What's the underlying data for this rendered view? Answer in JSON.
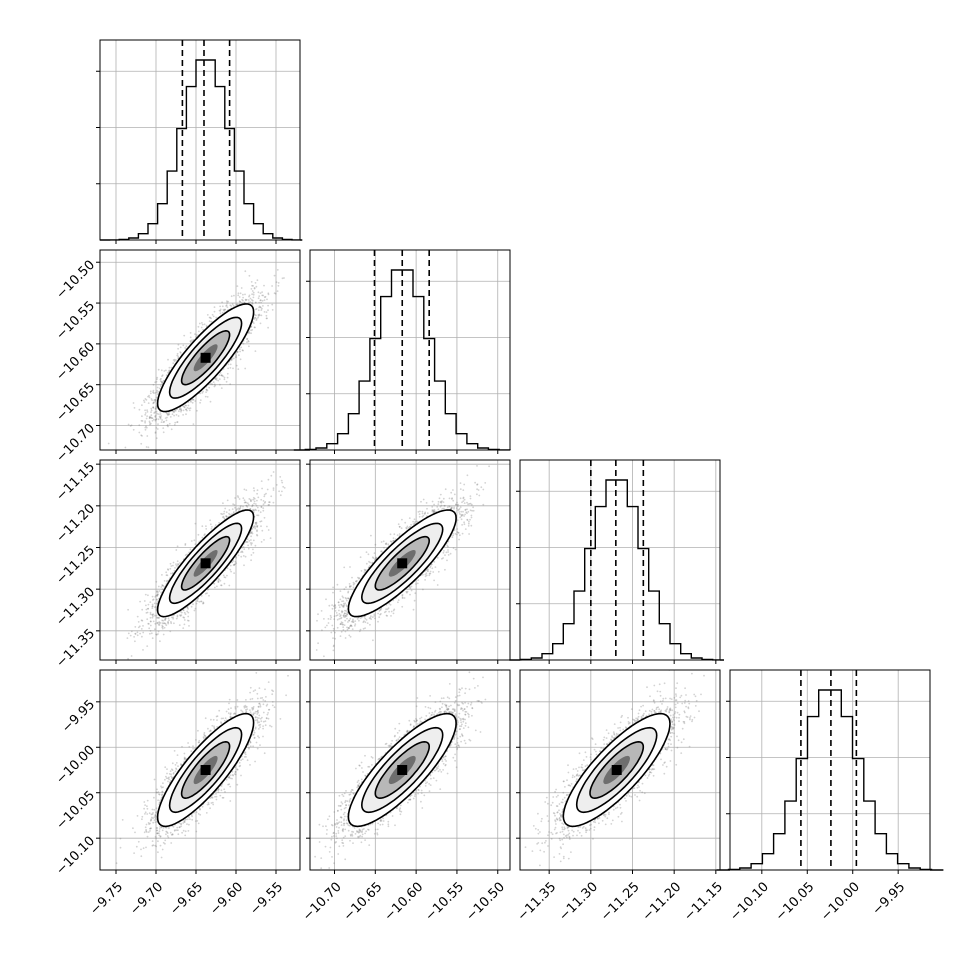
{
  "chart_data": {
    "type": "corner",
    "grid": true,
    "colors": {
      "ink": "#000000",
      "grid": "#b0b0b0",
      "points": "#808080"
    },
    "parameters": [
      {
        "range": [
          -9.77,
          -9.52
        ],
        "ticks": [
          -9.75,
          -9.7,
          -9.65,
          -9.6,
          -9.55
        ],
        "tick_labels": [
          "−9.75",
          "−9.70",
          "−9.65",
          "−9.60",
          "−9.55"
        ],
        "quantiles": [
          -9.667,
          -9.64,
          -9.608
        ],
        "mean": -9.638,
        "sd": 0.03
      },
      {
        "range": [
          -10.73,
          -10.485
        ],
        "ticks": [
          -10.7,
          -10.65,
          -10.6,
          -10.55,
          -10.5
        ],
        "tick_labels": [
          "−10.70",
          "−10.65",
          "−10.60",
          "−10.55",
          "−10.50"
        ],
        "quantiles": [
          -10.651,
          -10.617,
          -10.584
        ],
        "mean": -10.617,
        "sd": 0.033
      },
      {
        "range": [
          -11.385,
          -11.145
        ],
        "ticks": [
          -11.35,
          -11.3,
          -11.25,
          -11.2,
          -11.15
        ],
        "tick_labels": [
          "−11.35",
          "−11.30",
          "−11.25",
          "−11.20",
          "−11.15"
        ],
        "quantiles": [
          -11.3,
          -11.27,
          -11.237
        ],
        "mean": -11.269,
        "sd": 0.032
      },
      {
        "range": [
          -10.135,
          -9.915
        ],
        "ticks": [
          -10.1,
          -10.05,
          -10.0,
          -9.95
        ],
        "tick_labels": [
          "−10.10",
          "−10.05",
          "−10.00",
          "−9.95"
        ],
        "quantiles": [
          -10.057,
          -10.024,
          -9.996
        ],
        "mean": -10.025,
        "sd": 0.031
      }
    ],
    "correlations": [
      {
        "x": 0,
        "y": 1,
        "rho": 0.85
      },
      {
        "x": 0,
        "y": 2,
        "rho": 0.87
      },
      {
        "x": 1,
        "y": 2,
        "rho": 0.85
      },
      {
        "x": 0,
        "y": 3,
        "rho": 0.84
      },
      {
        "x": 1,
        "y": 3,
        "rho": 0.83
      },
      {
        "x": 2,
        "y": 3,
        "rho": 0.82
      }
    ],
    "contour_sigmas": [
      0.5,
      1.0,
      1.5,
      2.0
    ],
    "samples": 4000
  }
}
